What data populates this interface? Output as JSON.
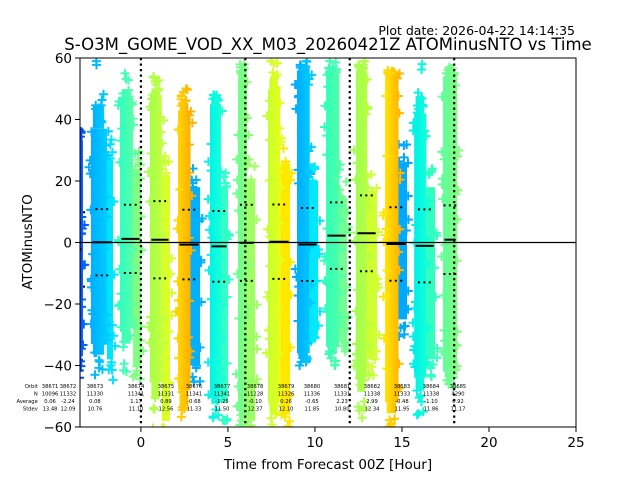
{
  "chart_data": {
    "type": "scatter",
    "plot_date": "Plot date: 2026-04-22 14:14:35",
    "title": "S-O3M_GOME_VOD_XX_M03_20260421Z ATOMinusNTO vs Time",
    "xlabel": "Time from Forecast 00Z [Hour]",
    "ylabel": "ATOMinusNTO",
    "xlim": [
      -3.5,
      25
    ],
    "ylim": [
      -60,
      60
    ],
    "xticks": [
      0,
      5,
      10,
      15,
      20,
      25
    ],
    "xtick_labels": [
      "0",
      "5",
      "10",
      "15",
      "20",
      "25"
    ],
    "yticks": [
      -60,
      -40,
      -20,
      0,
      20,
      40,
      60
    ],
    "ytick_labels": [
      "−60",
      "−40",
      "−20",
      "0",
      "20",
      "40",
      "60"
    ],
    "grid": false,
    "marker": "+",
    "reference_hline": 0,
    "forecast_vlines": [
      0,
      6,
      12,
      18
    ],
    "series": [
      {
        "orbit": "38672",
        "mean": -2.24,
        "stdev": 12.09,
        "min": -44,
        "max": 37,
        "main": {
          "t": [
            -3.8,
            -3.33
          ],
          "lo": -37,
          "hi": 33,
          "c0": "#0030ff",
          "c1": "#0060ff"
        },
        "sub": null
      },
      {
        "orbit": "38673",
        "mean": 0.08,
        "stdev": 10.76,
        "min": -43,
        "max": 59,
        "main": {
          "t": [
            -2.87,
            -1.95
          ],
          "lo": -33,
          "hi": 37,
          "c0": "#00b0ff",
          "c1": "#00ccff"
        },
        "sub": {
          "t": [
            -1.95,
            -1.6
          ],
          "lo": -38,
          "hi": 27,
          "c": "#00e4ff"
        }
      },
      {
        "orbit": "38674",
        "mean": 1.17,
        "stdev": 11.1,
        "min": -42,
        "max": 55,
        "main": {
          "t": [
            -1.2,
            -0.45
          ],
          "lo": -28,
          "hi": 47,
          "c0": "#30ffc0",
          "c1": "#58ffa8"
        },
        "sub": {
          "t": [
            -0.45,
            0.0
          ],
          "lo": -40,
          "hi": 24,
          "c": "#80ff80"
        }
      },
      {
        "orbit": "38675",
        "mean": 0.89,
        "stdev": 12.56,
        "min": -62,
        "max": 54,
        "main": {
          "t": [
            0.52,
            1.2
          ],
          "lo": -45,
          "hi": 48,
          "c0": "#a8ff48",
          "c1": "#c0ff40"
        },
        "sub": {
          "t": [
            1.2,
            1.67
          ],
          "lo": -58,
          "hi": 22,
          "c": "#d8ff28"
        }
      },
      {
        "orbit": "38676",
        "mean": -0.68,
        "stdev": 11.33,
        "min": -62,
        "max": 50,
        "main": {
          "t": [
            2.13,
            2.85
          ],
          "lo": -48,
          "hi": 43,
          "c0": "#ffd400",
          "c1": "#ffb000"
        },
        "sub": {
          "t": [
            2.85,
            3.4
          ],
          "lo": -40,
          "hi": 18,
          "c": "#00b0ff"
        }
      },
      {
        "orbit": "38677",
        "mean": -1.25,
        "stdev": 11.5,
        "min": -57,
        "max": 48,
        "main": {
          "t": [
            3.97,
            4.6
          ],
          "lo": -50,
          "hi": 45,
          "c0": "#00f4e8",
          "c1": "#18ffd8"
        },
        "sub": {
          "t": [
            4.6,
            5.0
          ],
          "lo": -52,
          "hi": 18,
          "c": "#30ffc8"
        }
      },
      {
        "orbit": "38678",
        "mean": -0.1,
        "stdev": 12.37,
        "min": -62,
        "max": 58,
        "main": {
          "t": [
            5.58,
            6.1
          ],
          "lo": -55,
          "hi": 54,
          "c0": "#70ff90",
          "c1": "#88ff78"
        },
        "sub": {
          "t": [
            6.1,
            6.56
          ],
          "lo": -58,
          "hi": 20,
          "c": "#a0ff60"
        }
      },
      {
        "orbit": "38679",
        "mean": 0.26,
        "stdev": 12.1,
        "min": -62,
        "max": 59,
        "main": {
          "t": [
            7.3,
            8.0
          ],
          "lo": -52,
          "hi": 50,
          "c0": "#c8ff30",
          "c1": "#e4ff18"
        },
        "sub": {
          "t": [
            8.0,
            8.57
          ],
          "lo": -56,
          "hi": 25,
          "c": "#ffe800"
        }
      },
      {
        "orbit": "38680",
        "mean": -0.65,
        "stdev": 11.85,
        "min": -40,
        "max": 59,
        "main": {
          "t": [
            8.97,
            9.7
          ],
          "lo": -36,
          "hi": 56,
          "c0": "#00b0ff",
          "c1": "#00c8ff"
        },
        "sub": {
          "t": [
            9.7,
            10.18
          ],
          "lo": -30,
          "hi": 20,
          "c": "#00e8ff"
        }
      },
      {
        "orbit": "38681",
        "mean": 2.23,
        "stdev": 10.8,
        "min": -40,
        "max": 59,
        "main": {
          "t": [
            10.64,
            11.4
          ],
          "lo": -34,
          "hi": 55,
          "c0": "#30ffb8",
          "c1": "#50ffa8"
        },
        "sub": {
          "t": [
            11.4,
            11.84
          ],
          "lo": -32,
          "hi": 14,
          "c": "#70ff90"
        }
      },
      {
        "orbit": "38682",
        "mean": 2.99,
        "stdev": 12.34,
        "min": -57,
        "max": 59,
        "main": {
          "t": [
            12.36,
            13.0
          ],
          "lo": -44,
          "hi": 56,
          "c0": "#a0ff50",
          "c1": "#b8ff40"
        },
        "sub": {
          "t": [
            13.0,
            13.57
          ],
          "lo": -38,
          "hi": 16,
          "c": "#d0ff30"
        }
      },
      {
        "orbit": "38683",
        "mean": -0.48,
        "stdev": 11.95,
        "min": -62,
        "max": 56,
        "main": {
          "t": [
            14.03,
            14.8
          ],
          "lo": -52,
          "hi": 55,
          "c0": "#ffe400",
          "c1": "#ffb800"
        },
        "sub": {
          "t": [
            14.8,
            15.29
          ],
          "lo": -25,
          "hi": 26,
          "c": "#00a8ff"
        }
      },
      {
        "orbit": "38684",
        "mean": -1.1,
        "stdev": 11.86,
        "min": -56,
        "max": 58,
        "main": {
          "t": [
            15.7,
            16.4
          ],
          "lo": -44,
          "hi": 42,
          "c0": "#00f0e8",
          "c1": "#10ffd8"
        },
        "sub": {
          "t": [
            16.4,
            16.9
          ],
          "lo": -38,
          "hi": 18,
          "c": "#30ffc0"
        }
      },
      {
        "orbit": "38685",
        "mean": 0.92,
        "stdev": 11.17,
        "min": -47,
        "max": 57,
        "main": {
          "t": [
            17.36,
            18.17
          ],
          "lo": -42,
          "hi": 54,
          "c0": "#60ff98",
          "c1": "#80ff80"
        },
        "sub": null
      }
    ],
    "annotations": {
      "y": -47.3,
      "header": {
        "x": -2.81,
        "lines": [
          "Orbit",
          "N",
          "Average",
          "Stdev"
        ]
      },
      "rows": [
        {
          "x": -5.22,
          "orbit": "38671",
          "n": "10096",
          "average": "0.06",
          "stdev": "13.48"
        },
        {
          "x": -4.19,
          "orbit": "38672",
          "n": "11332",
          "average": "-2.24",
          "stdev": "12.09"
        },
        {
          "x": -2.64,
          "orbit": "38673",
          "n": "11330",
          "average": "0.08",
          "stdev": "10.76"
        },
        {
          "x": -0.28,
          "orbit": "38674",
          "n": "11341",
          "average": "1.17",
          "stdev": "11.10"
        },
        {
          "x": 1.44,
          "orbit": "38675",
          "n": "11331",
          "average": "0.89",
          "stdev": "12.56"
        },
        {
          "x": 3.05,
          "orbit": "38676",
          "n": "11341",
          "average": "-0.68",
          "stdev": "11.33"
        },
        {
          "x": 4.66,
          "orbit": "38677",
          "n": "11341",
          "average": "-1.25",
          "stdev": "11.50"
        },
        {
          "x": 6.56,
          "orbit": "38678",
          "n": "11228",
          "average": "-0.10",
          "stdev": "12.37"
        },
        {
          "x": 8.34,
          "orbit": "38679",
          "n": "11326",
          "average": "0.26",
          "stdev": "12.10"
        },
        {
          "x": 9.83,
          "orbit": "38680",
          "n": "11336",
          "average": "-0.65",
          "stdev": "11.85"
        },
        {
          "x": 11.56,
          "orbit": "38681",
          "n": "11331",
          "average": "2.23",
          "stdev": "10.80"
        },
        {
          "x": 13.28,
          "orbit": "38682",
          "n": "11338",
          "average": "2.99",
          "stdev": "12.34"
        },
        {
          "x": 15.0,
          "orbit": "38683",
          "n": "11333",
          "average": "-0.48",
          "stdev": "11.95"
        },
        {
          "x": 16.67,
          "orbit": "38684",
          "n": "11338",
          "average": "-1.10",
          "stdev": "11.86"
        },
        {
          "x": 18.22,
          "orbit": "38685",
          "n": "4290",
          "average": "0.92",
          "stdev": "11.17"
        }
      ]
    }
  }
}
